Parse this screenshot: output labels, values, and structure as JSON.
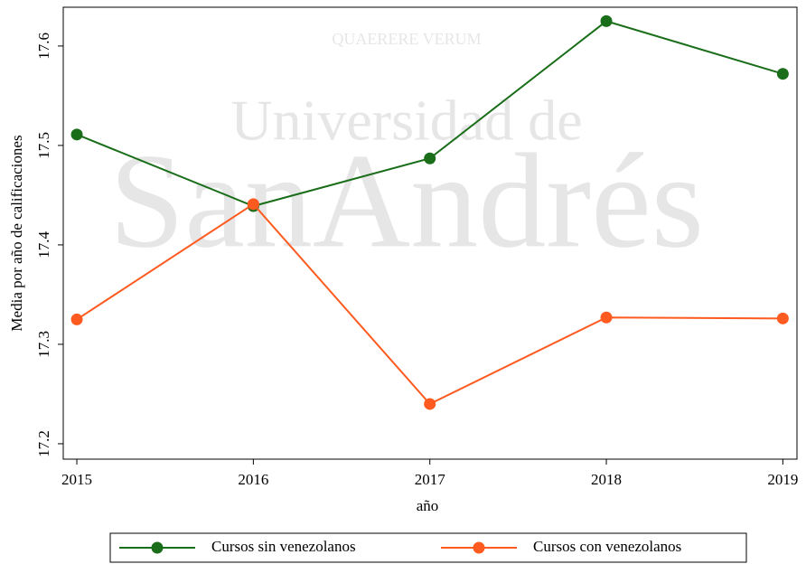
{
  "chart_data": {
    "type": "line",
    "watermark": [
      "QUAERERE VERUM",
      "Universidad de",
      "SanAndrés"
    ],
    "x_label": "año",
    "y_label": "Media por año de calificaciones",
    "x": [
      2015,
      2016,
      2017,
      2018,
      2019
    ],
    "series": [
      {
        "name": "Cursos sin venezolanos",
        "color": "#1a6e1a",
        "values": [
          17.511,
          17.439,
          17.487,
          17.625,
          17.572
        ]
      },
      {
        "name": "Cursos con venezolanos",
        "color": "#ff5a1f",
        "values": [
          17.325,
          17.441,
          17.24,
          17.327,
          17.326
        ]
      }
    ],
    "xlim": [
      2014.923,
      2019.08
    ],
    "xticks": [
      2015,
      2016,
      2017,
      2018,
      2019
    ],
    "ylim": [
      17.1845,
      17.639
    ],
    "yticks": [
      17.2,
      17.3,
      17.4,
      17.5,
      17.6
    ],
    "grid": false,
    "legend": "bottom"
  }
}
